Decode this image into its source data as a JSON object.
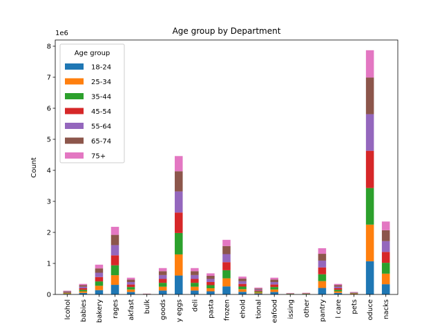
{
  "chart_data": {
    "type": "bar",
    "stacked": true,
    "title": "Age group by Department",
    "xlabel": "",
    "ylabel": "Count",
    "y_offset_label": "1e6",
    "ylim": [
      0,
      8200000
    ],
    "yticks": [
      0,
      1,
      2,
      3,
      4,
      5,
      6,
      7,
      8
    ],
    "legend": {
      "title": "Age group",
      "placement": "upper-left"
    },
    "categories": [
      "lcohol",
      "babies",
      "bakery",
      "rages",
      "akfast",
      "bulk",
      "goods",
      "y eggs",
      "deli",
      "pasta",
      "frozen",
      "ehold",
      "tional",
      "eafood",
      "issing",
      "other",
      "pantry",
      "l care",
      "pets",
      "oduce",
      "nacks"
    ],
    "series": [
      {
        "name": "18-24",
        "color": "#1f77b4",
        "values": [
          18000,
          50000,
          140000,
          310000,
          80000,
          4000,
          125000,
          610000,
          125000,
          100000,
          260000,
          85000,
          32000,
          80000,
          7000,
          8000,
          210000,
          50000,
          12000,
          1070000,
          330000
        ]
      },
      {
        "name": "25-34",
        "color": "#ff7f0e",
        "values": [
          18000,
          50000,
          140000,
          310000,
          80000,
          4000,
          125000,
          680000,
          125000,
          100000,
          260000,
          85000,
          32000,
          80000,
          7000,
          8000,
          220000,
          50000,
          12000,
          1180000,
          340000
        ]
      },
      {
        "name": "35-44",
        "color": "#2ca02c",
        "values": [
          18000,
          50000,
          140000,
          320000,
          80000,
          4000,
          125000,
          690000,
          125000,
          100000,
          260000,
          85000,
          32000,
          80000,
          7000,
          8000,
          220000,
          50000,
          12000,
          1180000,
          350000
        ]
      },
      {
        "name": "45-54",
        "color": "#d62728",
        "values": [
          18000,
          50000,
          140000,
          320000,
          80000,
          4000,
          125000,
          660000,
          125000,
          100000,
          260000,
          85000,
          32000,
          80000,
          7000,
          8000,
          220000,
          50000,
          12000,
          1200000,
          350000
        ]
      },
      {
        "name": "55-64",
        "color": "#9467bd",
        "values": [
          18000,
          50000,
          140000,
          330000,
          80000,
          4000,
          125000,
          680000,
          125000,
          100000,
          260000,
          85000,
          32000,
          80000,
          7000,
          8000,
          220000,
          50000,
          12000,
          1180000,
          350000
        ]
      },
      {
        "name": "65-74",
        "color": "#8c564b",
        "values": [
          18000,
          50000,
          140000,
          330000,
          80000,
          4000,
          125000,
          650000,
          125000,
          100000,
          260000,
          85000,
          32000,
          80000,
          7000,
          8000,
          220000,
          50000,
          12000,
          1180000,
          350000
        ]
      },
      {
        "name": "75+",
        "color": "#e377c2",
        "values": [
          12000,
          40000,
          120000,
          260000,
          60000,
          3000,
          100000,
          490000,
          100000,
          80000,
          200000,
          65000,
          28000,
          60000,
          5000,
          7000,
          180000,
          40000,
          10000,
          880000,
          280000
        ]
      }
    ]
  }
}
